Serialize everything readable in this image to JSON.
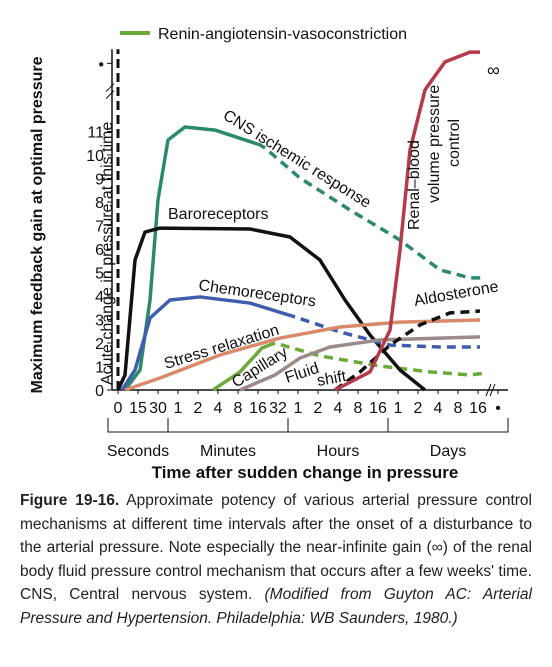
{
  "chart_data": {
    "type": "line",
    "xlabel": "Time after sudden change in pressure",
    "ylabel": "Maximum feedback gain at optimal pressure",
    "xlim": [
      -0.3,
      19.5
    ],
    "ylim": [
      0,
      14.5
    ],
    "xticks": [
      {
        "value": 0,
        "label": "0"
      },
      {
        "value": 1,
        "label": "15"
      },
      {
        "value": 2,
        "label": "30"
      },
      {
        "value": 3,
        "label": "1"
      },
      {
        "value": 4,
        "label": "2"
      },
      {
        "value": 5,
        "label": "4"
      },
      {
        "value": 6,
        "label": "8"
      },
      {
        "value": 7,
        "label": "16"
      },
      {
        "value": 8,
        "label": "32"
      },
      {
        "value": 9,
        "label": "1"
      },
      {
        "value": 10,
        "label": "2"
      },
      {
        "value": 11,
        "label": "4"
      },
      {
        "value": 12,
        "label": "8"
      },
      {
        "value": 13,
        "label": "16"
      },
      {
        "value": 14,
        "label": "1"
      },
      {
        "value": 15,
        "label": "2"
      },
      {
        "value": 16,
        "label": "4"
      },
      {
        "value": 17,
        "label": "8"
      },
      {
        "value": 18,
        "label": "16"
      },
      {
        "value": 19,
        "label": "•"
      }
    ],
    "x_groups": [
      {
        "label": "Seconds",
        "from": 0,
        "to": 2
      },
      {
        "label": "Minutes",
        "from": 3,
        "to": 8
      },
      {
        "label": "Hours",
        "from": 9,
        "to": 13
      },
      {
        "label": "Days",
        "from": 14,
        "to": 19
      }
    ],
    "yticks": [
      0,
      1,
      2,
      3,
      4,
      5,
      6,
      7,
      8,
      9,
      10,
      11,
      {
        "value": 13.9,
        "label": "•"
      }
    ],
    "annotations": [
      "Acute change in pressure at this time",
      "∞"
    ],
    "series": [
      {
        "name": "Renin-angiotensin-vasoconstriction",
        "color": "#6aaa3a",
        "dash_from": 7.85,
        "x": [
          4.75,
          6.1,
          7.2,
          7.85,
          10.1,
          13.1,
          15.6,
          17.6,
          18.35
        ],
        "values": [
          0,
          0.77,
          1.79,
          2.0,
          1.45,
          1.02,
          0.77,
          0.64,
          0.72
        ]
      },
      {
        "label": [
          "CNS ischemic response"
        ],
        "color": "#2a8a6a",
        "dash_from": 7.35,
        "x": [
          0.35,
          1.1,
          1.6,
          2,
          2.5,
          3.35,
          4.85,
          7.1,
          7.35,
          9.1,
          11.6,
          14.1,
          16.1,
          17.6,
          18.35
        ],
        "values": [
          0,
          0.85,
          3.83,
          8.09,
          10.64,
          11.19,
          11.06,
          10.43,
          10.3,
          9.02,
          7.66,
          6.38,
          5.11,
          4.77,
          4.77
        ]
      },
      {
        "label": [
          "Baroreceptors"
        ],
        "color": "#111111",
        "x": [
          0,
          0.35,
          0.85,
          1.35,
          2.1,
          6.6,
          8.6,
          10.1,
          11.35,
          12.6,
          14.1,
          15.35
        ],
        "values": [
          0,
          0.64,
          5.53,
          6.72,
          6.89,
          6.85,
          6.51,
          5.53,
          3.83,
          2.34,
          0.85,
          0
        ]
      },
      {
        "label": [
          "Chemoreceptors"
        ],
        "color": "#3f5cae",
        "dash_from": 8.85,
        "x": [
          0.2,
          0.85,
          1.6,
          2.6,
          4.1,
          6.6,
          8.85,
          11.1,
          13.6,
          16.1,
          18.1
        ],
        "values": [
          0,
          0.85,
          3.06,
          3.83,
          3.96,
          3.7,
          3.11,
          2.47,
          1.91,
          1.83,
          1.83
        ]
      },
      {
        "label": [
          "Stress relaxation"
        ],
        "color": "#d98a6a",
        "x": [
          0.35,
          2.1,
          5.1,
          8.1,
          11.1,
          14.1,
          18.1
        ],
        "values": [
          0,
          0.51,
          1.49,
          2.21,
          2.68,
          2.89,
          2.98
        ]
      },
      {
        "label": [
          "Capillary",
          "Fluid",
          "shift"
        ],
        "color": "#9b8a8a",
        "x": [
          6.1,
          7.85,
          9.1,
          10.6,
          13.1,
          16.1,
          18.1
        ],
        "values": [
          0,
          0.64,
          1.36,
          1.83,
          2.13,
          2.21,
          2.26
        ]
      },
      {
        "label": [
          "Aldosterone"
        ],
        "color": "#111111",
        "dash_from": 10.85,
        "x": [
          10.85,
          12.1,
          13.6,
          15.1,
          16.6,
          18.1
        ],
        "values": [
          0,
          0.77,
          1.91,
          2.77,
          3.28,
          3.36
        ]
      },
      {
        "label": [
          "Renal–blood",
          "volume pressure",
          "control"
        ],
        "color": "#b53a4a",
        "x": [
          10.85,
          12.6,
          13.6,
          14.1,
          14.6,
          15.35,
          16.35,
          17.6,
          18.1
        ],
        "values": [
          0,
          0.77,
          2.55,
          5.96,
          10.21,
          12.77,
          13.96,
          14.38,
          14.38
        ]
      }
    ]
  },
  "caption": {
    "label": "Figure 19-16.",
    "text": "Approximate potency of various arterial pressure control mechanisms at different time intervals after the onset of a disturbance to the arterial pressure. Note especially the near-infinite gain (∞) of the renal body fluid pressure control mechanism that occurs after a few weeks' time. CNS, Central nervous system.",
    "source": "(Modified from Guyton AC: Arterial Pressure and Hypertension. Philadelphia: WB Saunders, 1980.)"
  }
}
